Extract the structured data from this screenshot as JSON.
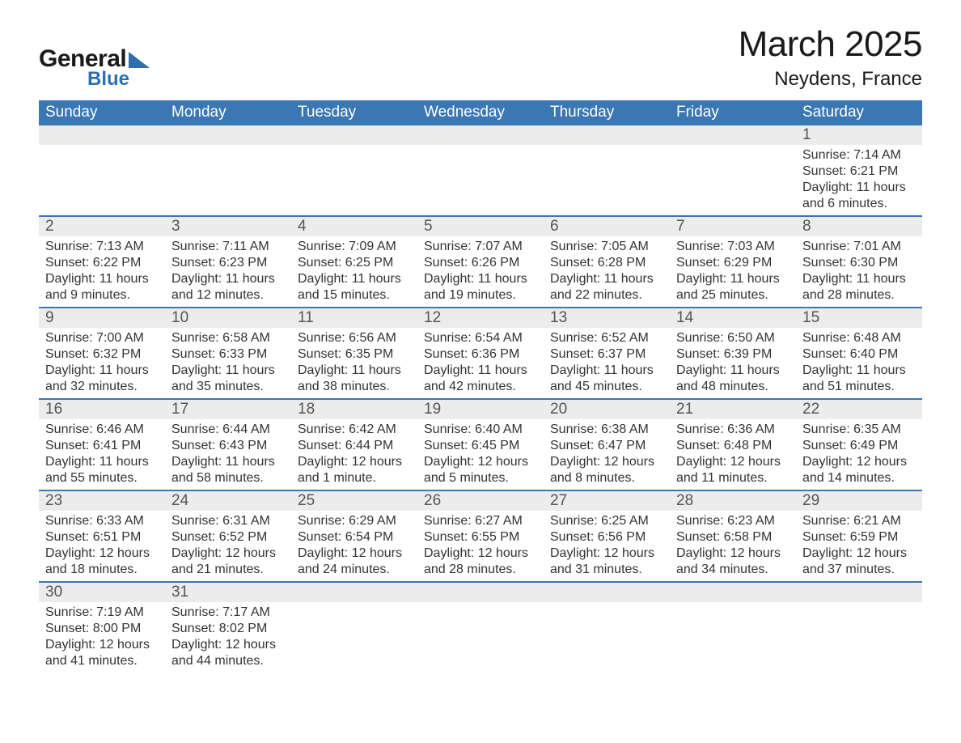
{
  "logo": {
    "text_general": "General",
    "text_blue": "Blue"
  },
  "title": "March 2025",
  "location": "Neydens, France",
  "colors": {
    "header_bg": "#3a77b3",
    "header_text": "#ffffff",
    "daynum_bg": "#ececec",
    "row_border": "#3a77b3",
    "logo_blue": "#2f6fad"
  },
  "days_of_week": [
    "Sunday",
    "Monday",
    "Tuesday",
    "Wednesday",
    "Thursday",
    "Friday",
    "Saturday"
  ],
  "weeks": [
    [
      null,
      null,
      null,
      null,
      null,
      null,
      {
        "n": "1",
        "sunrise": "Sunrise: 7:14 AM",
        "sunset": "Sunset: 6:21 PM",
        "daylight": "Daylight: 11 hours and 6 minutes."
      }
    ],
    [
      {
        "n": "2",
        "sunrise": "Sunrise: 7:13 AM",
        "sunset": "Sunset: 6:22 PM",
        "daylight": "Daylight: 11 hours and 9 minutes."
      },
      {
        "n": "3",
        "sunrise": "Sunrise: 7:11 AM",
        "sunset": "Sunset: 6:23 PM",
        "daylight": "Daylight: 11 hours and 12 minutes."
      },
      {
        "n": "4",
        "sunrise": "Sunrise: 7:09 AM",
        "sunset": "Sunset: 6:25 PM",
        "daylight": "Daylight: 11 hours and 15 minutes."
      },
      {
        "n": "5",
        "sunrise": "Sunrise: 7:07 AM",
        "sunset": "Sunset: 6:26 PM",
        "daylight": "Daylight: 11 hours and 19 minutes."
      },
      {
        "n": "6",
        "sunrise": "Sunrise: 7:05 AM",
        "sunset": "Sunset: 6:28 PM",
        "daylight": "Daylight: 11 hours and 22 minutes."
      },
      {
        "n": "7",
        "sunrise": "Sunrise: 7:03 AM",
        "sunset": "Sunset: 6:29 PM",
        "daylight": "Daylight: 11 hours and 25 minutes."
      },
      {
        "n": "8",
        "sunrise": "Sunrise: 7:01 AM",
        "sunset": "Sunset: 6:30 PM",
        "daylight": "Daylight: 11 hours and 28 minutes."
      }
    ],
    [
      {
        "n": "9",
        "sunrise": "Sunrise: 7:00 AM",
        "sunset": "Sunset: 6:32 PM",
        "daylight": "Daylight: 11 hours and 32 minutes."
      },
      {
        "n": "10",
        "sunrise": "Sunrise: 6:58 AM",
        "sunset": "Sunset: 6:33 PM",
        "daylight": "Daylight: 11 hours and 35 minutes."
      },
      {
        "n": "11",
        "sunrise": "Sunrise: 6:56 AM",
        "sunset": "Sunset: 6:35 PM",
        "daylight": "Daylight: 11 hours and 38 minutes."
      },
      {
        "n": "12",
        "sunrise": "Sunrise: 6:54 AM",
        "sunset": "Sunset: 6:36 PM",
        "daylight": "Daylight: 11 hours and 42 minutes."
      },
      {
        "n": "13",
        "sunrise": "Sunrise: 6:52 AM",
        "sunset": "Sunset: 6:37 PM",
        "daylight": "Daylight: 11 hours and 45 minutes."
      },
      {
        "n": "14",
        "sunrise": "Sunrise: 6:50 AM",
        "sunset": "Sunset: 6:39 PM",
        "daylight": "Daylight: 11 hours and 48 minutes."
      },
      {
        "n": "15",
        "sunrise": "Sunrise: 6:48 AM",
        "sunset": "Sunset: 6:40 PM",
        "daylight": "Daylight: 11 hours and 51 minutes."
      }
    ],
    [
      {
        "n": "16",
        "sunrise": "Sunrise: 6:46 AM",
        "sunset": "Sunset: 6:41 PM",
        "daylight": "Daylight: 11 hours and 55 minutes."
      },
      {
        "n": "17",
        "sunrise": "Sunrise: 6:44 AM",
        "sunset": "Sunset: 6:43 PM",
        "daylight": "Daylight: 11 hours and 58 minutes."
      },
      {
        "n": "18",
        "sunrise": "Sunrise: 6:42 AM",
        "sunset": "Sunset: 6:44 PM",
        "daylight": "Daylight: 12 hours and 1 minute."
      },
      {
        "n": "19",
        "sunrise": "Sunrise: 6:40 AM",
        "sunset": "Sunset: 6:45 PM",
        "daylight": "Daylight: 12 hours and 5 minutes."
      },
      {
        "n": "20",
        "sunrise": "Sunrise: 6:38 AM",
        "sunset": "Sunset: 6:47 PM",
        "daylight": "Daylight: 12 hours and 8 minutes."
      },
      {
        "n": "21",
        "sunrise": "Sunrise: 6:36 AM",
        "sunset": "Sunset: 6:48 PM",
        "daylight": "Daylight: 12 hours and 11 minutes."
      },
      {
        "n": "22",
        "sunrise": "Sunrise: 6:35 AM",
        "sunset": "Sunset: 6:49 PM",
        "daylight": "Daylight: 12 hours and 14 minutes."
      }
    ],
    [
      {
        "n": "23",
        "sunrise": "Sunrise: 6:33 AM",
        "sunset": "Sunset: 6:51 PM",
        "daylight": "Daylight: 12 hours and 18 minutes."
      },
      {
        "n": "24",
        "sunrise": "Sunrise: 6:31 AM",
        "sunset": "Sunset: 6:52 PM",
        "daylight": "Daylight: 12 hours and 21 minutes."
      },
      {
        "n": "25",
        "sunrise": "Sunrise: 6:29 AM",
        "sunset": "Sunset: 6:54 PM",
        "daylight": "Daylight: 12 hours and 24 minutes."
      },
      {
        "n": "26",
        "sunrise": "Sunrise: 6:27 AM",
        "sunset": "Sunset: 6:55 PM",
        "daylight": "Daylight: 12 hours and 28 minutes."
      },
      {
        "n": "27",
        "sunrise": "Sunrise: 6:25 AM",
        "sunset": "Sunset: 6:56 PM",
        "daylight": "Daylight: 12 hours and 31 minutes."
      },
      {
        "n": "28",
        "sunrise": "Sunrise: 6:23 AM",
        "sunset": "Sunset: 6:58 PM",
        "daylight": "Daylight: 12 hours and 34 minutes."
      },
      {
        "n": "29",
        "sunrise": "Sunrise: 6:21 AM",
        "sunset": "Sunset: 6:59 PM",
        "daylight": "Daylight: 12 hours and 37 minutes."
      }
    ],
    [
      {
        "n": "30",
        "sunrise": "Sunrise: 7:19 AM",
        "sunset": "Sunset: 8:00 PM",
        "daylight": "Daylight: 12 hours and 41 minutes."
      },
      {
        "n": "31",
        "sunrise": "Sunrise: 7:17 AM",
        "sunset": "Sunset: 8:02 PM",
        "daylight": "Daylight: 12 hours and 44 minutes."
      },
      null,
      null,
      null,
      null,
      null
    ]
  ]
}
